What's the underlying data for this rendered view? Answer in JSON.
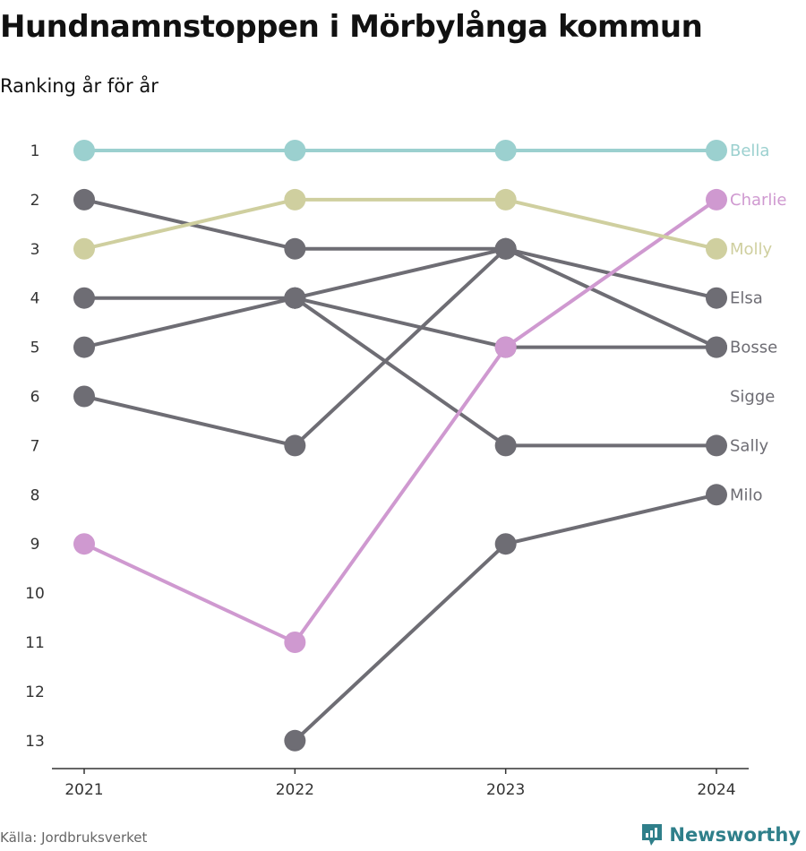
{
  "title": "Hundnamnstoppen i Mörbylånga kommun",
  "subtitle": "Ranking år för år",
  "footer": {
    "source": "Källa: Jordbruksverket",
    "brand": "Newsworthy"
  },
  "colors": {
    "gray": "#6e6d74",
    "bella": "#9bd0cf",
    "molly": "#cfcf9f",
    "charlie": "#cf99d0",
    "axis": "#333333"
  },
  "chart_data": {
    "type": "line",
    "chart_subtype": "bump",
    "x": [
      "2021",
      "2022",
      "2023",
      "2024"
    ],
    "y_ticks": [
      1,
      2,
      3,
      4,
      5,
      6,
      7,
      8,
      9,
      10,
      11,
      12,
      13
    ],
    "y_reversed": true,
    "series": [
      {
        "name": "Bella",
        "color": "#9bd0cf",
        "values": [
          1,
          1,
          1,
          1
        ]
      },
      {
        "name": "Charlie",
        "color": "#cf99d0",
        "values": [
          9,
          11,
          5,
          2
        ]
      },
      {
        "name": "Molly",
        "color": "#cfcf9f",
        "values": [
          3,
          2,
          2,
          3
        ]
      },
      {
        "name": "Elsa",
        "color": "#6e6d74",
        "values": [
          2,
          3,
          3,
          4
        ]
      },
      {
        "name": "Bosse",
        "color": "#6e6d74",
        "values": [
          5,
          4,
          3,
          5
        ]
      },
      {
        "name": "Sigge",
        "color": "#6e6d74",
        "values": [
          6,
          7,
          3,
          null
        ]
      },
      {
        "name": "Sally",
        "color": "#6e6d74",
        "values": [
          4,
          4,
          7,
          7
        ]
      },
      {
        "name": "Milo",
        "color": "#6e6d74",
        "values": [
          null,
          13,
          9,
          8
        ]
      },
      {
        "name": "",
        "color": "#6e6d74",
        "values": [
          null,
          4,
          5,
          5
        ]
      }
    ]
  }
}
